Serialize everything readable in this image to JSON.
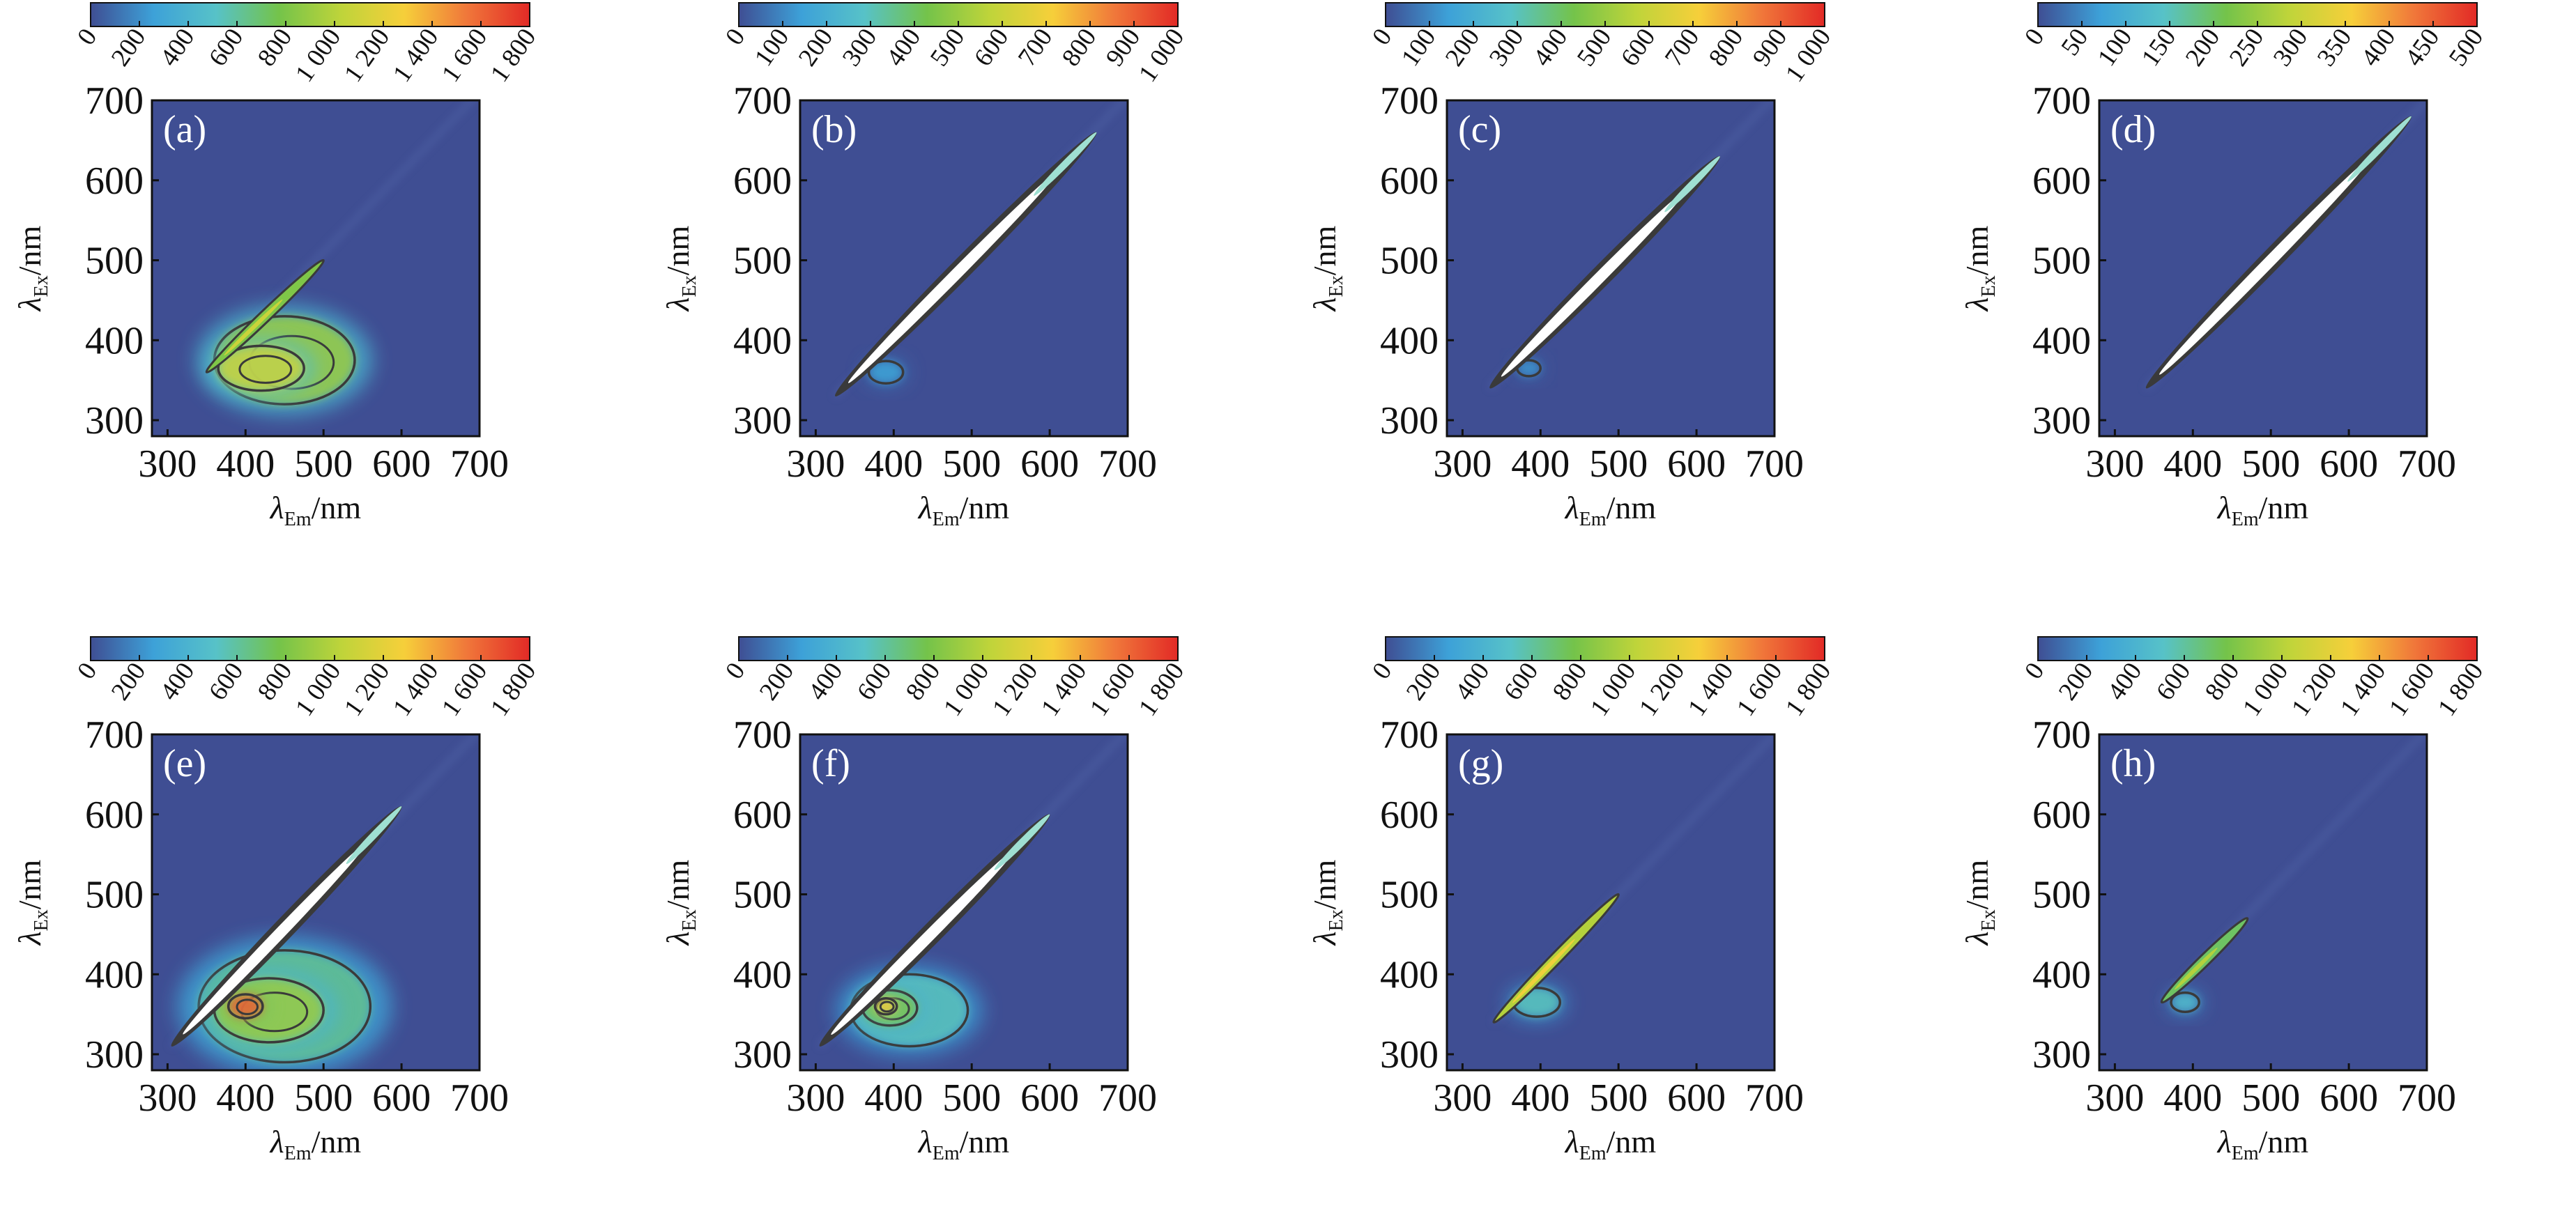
{
  "figure": {
    "colormap": [
      "#3f4e93",
      "#3da1d8",
      "#57c2c8",
      "#74c34a",
      "#bfd43a",
      "#f6cf3a",
      "#f0773a",
      "#e22a26"
    ],
    "background_color": "#3f4e93",
    "contour_color": "#3a3a3a"
  },
  "chart_data": [
    {
      "type": "heatmap",
      "panel_label": "(a)",
      "xlabel": {
        "main": "λ",
        "sub": "Em",
        "unit": "/nm"
      },
      "ylabel": {
        "main": "λ",
        "sub": "Ex",
        "unit": "/nm"
      },
      "xlim": [
        280,
        700
      ],
      "ylim": [
        280,
        700
      ],
      "x_ticks": [
        "300",
        "400",
        "500",
        "600",
        "700"
      ],
      "y_ticks": [
        "300",
        "400",
        "500",
        "600",
        "700"
      ],
      "colorbar": {
        "range": [
          0,
          1800
        ],
        "ticks": [
          "0",
          "200",
          "400",
          "600",
          "800",
          "1 000",
          "1 200",
          "1 400",
          "1 600",
          "1 800"
        ]
      },
      "rayleigh": {
        "from": [
          350,
          360
        ],
        "to": [
          500,
          500
        ],
        "level": 0.25,
        "dense_contours": false
      },
      "blobs": [
        {
          "x": 450,
          "y": 375,
          "rx": 90,
          "ry": 55,
          "level": 0.5
        },
        {
          "x": 420,
          "y": 365,
          "rx": 55,
          "ry": 28,
          "level": 0.6
        }
      ]
    },
    {
      "type": "heatmap",
      "panel_label": "(b)",
      "xlabel": {
        "main": "λ",
        "sub": "Em",
        "unit": "/nm"
      },
      "ylabel": {
        "main": "λ",
        "sub": "Ex",
        "unit": "/nm"
      },
      "xlim": [
        280,
        700
      ],
      "ylim": [
        280,
        700
      ],
      "x_ticks": [
        "300",
        "400",
        "500",
        "600",
        "700"
      ],
      "y_ticks": [
        "300",
        "400",
        "500",
        "600",
        "700"
      ],
      "colorbar": {
        "range": [
          0,
          1000
        ],
        "ticks": [
          "0",
          "100",
          "200",
          "300",
          "400",
          "500",
          "600",
          "700",
          "800",
          "900",
          "1 000"
        ]
      },
      "rayleigh": {
        "from": [
          325,
          330
        ],
        "to": [
          660,
          660
        ],
        "level": 1.0,
        "dense_contours": true
      },
      "blobs": [
        {
          "x": 390,
          "y": 360,
          "rx": 22,
          "ry": 14,
          "level": 0.15
        }
      ]
    },
    {
      "type": "heatmap",
      "panel_label": "(c)",
      "xlabel": {
        "main": "λ",
        "sub": "Em",
        "unit": "/nm"
      },
      "ylabel": {
        "main": "λ",
        "sub": "Ex",
        "unit": "/nm"
      },
      "xlim": [
        280,
        700
      ],
      "ylim": [
        280,
        700
      ],
      "x_ticks": [
        "300",
        "400",
        "500",
        "600",
        "700"
      ],
      "y_ticks": [
        "300",
        "400",
        "500",
        "600",
        "700"
      ],
      "colorbar": {
        "range": [
          0,
          1000
        ],
        "ticks": [
          "0",
          "100",
          "200",
          "300",
          "400",
          "500",
          "600",
          "700",
          "800",
          "900",
          "1 000"
        ]
      },
      "rayleigh": {
        "from": [
          335,
          340
        ],
        "to": [
          630,
          630
        ],
        "level": 1.0,
        "dense_contours": true
      },
      "blobs": [
        {
          "x": 385,
          "y": 365,
          "rx": 15,
          "ry": 10,
          "level": 0.12
        }
      ]
    },
    {
      "type": "heatmap",
      "panel_label": "(d)",
      "xlabel": {
        "main": "λ",
        "sub": "Em",
        "unit": "/nm"
      },
      "ylabel": {
        "main": "λ",
        "sub": "Ex",
        "unit": "/nm"
      },
      "xlim": [
        280,
        700
      ],
      "ylim": [
        280,
        700
      ],
      "x_ticks": [
        "300",
        "400",
        "500",
        "600",
        "700"
      ],
      "y_ticks": [
        "300",
        "400",
        "500",
        "600",
        "700"
      ],
      "colorbar": {
        "range": [
          0,
          500
        ],
        "ticks": [
          "0",
          "50",
          "100",
          "150",
          "200",
          "250",
          "300",
          "350",
          "400",
          "450",
          "500"
        ]
      },
      "rayleigh": {
        "from": [
          340,
          340
        ],
        "to": [
          680,
          680
        ],
        "level": 1.0,
        "dense_contours": true
      },
      "blobs": []
    },
    {
      "type": "heatmap",
      "panel_label": "(e)",
      "xlabel": {
        "main": "λ",
        "sub": "Em",
        "unit": "/nm"
      },
      "ylabel": {
        "main": "λ",
        "sub": "Ex",
        "unit": "/nm"
      },
      "xlim": [
        280,
        700
      ],
      "ylim": [
        280,
        700
      ],
      "x_ticks": [
        "300",
        "400",
        "500",
        "600",
        "700"
      ],
      "y_ticks": [
        "300",
        "400",
        "500",
        "600",
        "700"
      ],
      "colorbar": {
        "range": [
          0,
          1800
        ],
        "ticks": [
          "0",
          "200",
          "400",
          "600",
          "800",
          "1 000",
          "1 200",
          "1 400",
          "1 600",
          "1 800"
        ]
      },
      "rayleigh": {
        "from": [
          305,
          310
        ],
        "to": [
          600,
          610
        ],
        "level": 1.0,
        "dense_contours": true
      },
      "blobs": [
        {
          "x": 450,
          "y": 360,
          "rx": 110,
          "ry": 70,
          "level": 0.35
        },
        {
          "x": 430,
          "y": 355,
          "rx": 70,
          "ry": 40,
          "level": 0.5
        },
        {
          "x": 400,
          "y": 360,
          "rx": 22,
          "ry": 15,
          "level": 0.9
        }
      ]
    },
    {
      "type": "heatmap",
      "panel_label": "(f)",
      "xlabel": {
        "main": "λ",
        "sub": "Em",
        "unit": "/nm"
      },
      "ylabel": {
        "main": "λ",
        "sub": "Ex",
        "unit": "/nm"
      },
      "xlim": [
        280,
        700
      ],
      "ylim": [
        280,
        700
      ],
      "x_ticks": [
        "300",
        "400",
        "500",
        "600",
        "700"
      ],
      "y_ticks": [
        "300",
        "400",
        "500",
        "600",
        "700"
      ],
      "colorbar": {
        "range": [
          0,
          1800
        ],
        "ticks": [
          "0",
          "200",
          "400",
          "600",
          "800",
          "1 000",
          "1 200",
          "1 400",
          "1 600",
          "1 800"
        ]
      },
      "rayleigh": {
        "from": [
          305,
          310
        ],
        "to": [
          600,
          600
        ],
        "level": 1.0,
        "dense_contours": true
      },
      "blobs": [
        {
          "x": 420,
          "y": 355,
          "rx": 75,
          "ry": 45,
          "level": 0.3
        },
        {
          "x": 395,
          "y": 358,
          "rx": 35,
          "ry": 22,
          "level": 0.45
        },
        {
          "x": 390,
          "y": 360,
          "rx": 14,
          "ry": 10,
          "level": 0.72
        }
      ]
    },
    {
      "type": "heatmap",
      "panel_label": "(g)",
      "xlabel": {
        "main": "λ",
        "sub": "Em",
        "unit": "/nm"
      },
      "ylabel": {
        "main": "λ",
        "sub": "Ex",
        "unit": "/nm"
      },
      "xlim": [
        280,
        700
      ],
      "ylim": [
        280,
        700
      ],
      "x_ticks": [
        "300",
        "400",
        "500",
        "600",
        "700"
      ],
      "y_ticks": [
        "300",
        "400",
        "500",
        "600",
        "700"
      ],
      "colorbar": {
        "range": [
          0,
          1800
        ],
        "ticks": [
          "0",
          "200",
          "400",
          "600",
          "800",
          "1 000",
          "1 200",
          "1 400",
          "1 600",
          "1 800"
        ]
      },
      "rayleigh": {
        "from": [
          340,
          340
        ],
        "to": [
          500,
          500
        ],
        "level": 0.35,
        "dense_contours": false
      },
      "blobs": [
        {
          "x": 395,
          "y": 365,
          "rx": 30,
          "ry": 18,
          "level": 0.3
        }
      ]
    },
    {
      "type": "heatmap",
      "panel_label": "(h)",
      "xlabel": {
        "main": "λ",
        "sub": "Em",
        "unit": "/nm"
      },
      "ylabel": {
        "main": "λ",
        "sub": "Ex",
        "unit": "/nm"
      },
      "xlim": [
        280,
        700
      ],
      "ylim": [
        280,
        700
      ],
      "x_ticks": [
        "300",
        "400",
        "500",
        "600",
        "700"
      ],
      "y_ticks": [
        "300",
        "400",
        "500",
        "600",
        "700"
      ],
      "colorbar": {
        "range": [
          0,
          1800
        ],
        "ticks": [
          "0",
          "200",
          "400",
          "600",
          "800",
          "1 000",
          "1 200",
          "1 400",
          "1 600",
          "1 800"
        ]
      },
      "rayleigh": {
        "from": [
          360,
          365
        ],
        "to": [
          470,
          470
        ],
        "level": 0.2,
        "dense_contours": false
      },
      "blobs": [
        {
          "x": 390,
          "y": 365,
          "rx": 18,
          "ry": 12,
          "level": 0.25
        }
      ]
    }
  ]
}
